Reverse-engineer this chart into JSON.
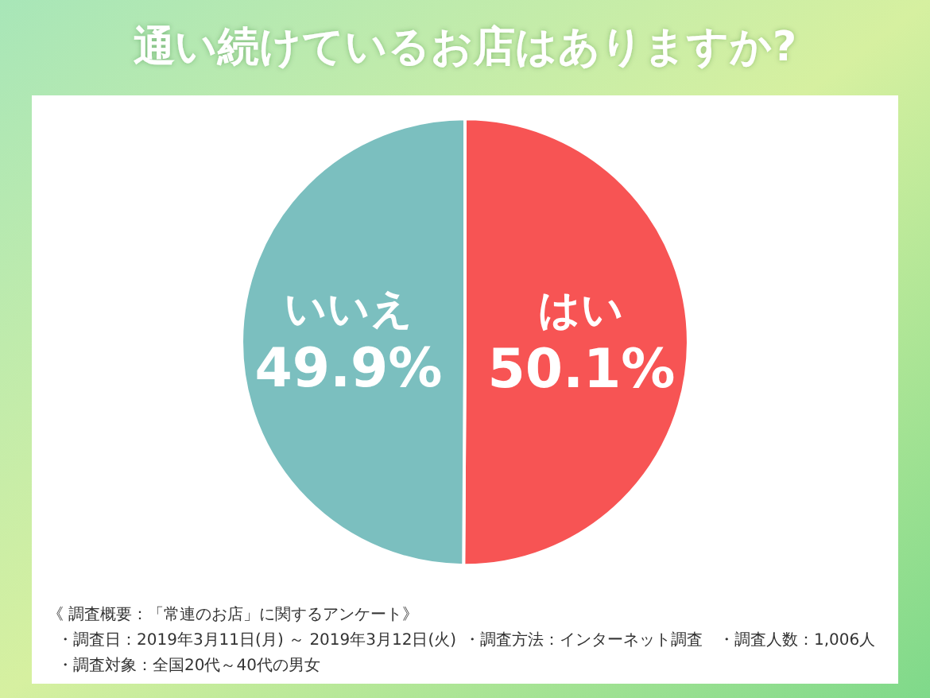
{
  "chart_data": {
    "type": "pie",
    "title": "通い続けているお店はありますか?",
    "categories": [
      "はい",
      "いいえ"
    ],
    "values": [
      50.1,
      49.9
    ],
    "colors": [
      "#f75454",
      "#7bbfbf"
    ],
    "value_labels": [
      "50.1%",
      "49.9%"
    ],
    "annotations": [
      "《 調査概要：「常連のお店」に関するアンケート》",
      "・調査日：2019年3月11日(月) ～ 2019年3月12日(火)",
      "・調査方法：インターネット調査",
      "・調査人数：1,006人",
      "・調査対象：全国20代～40代の男女"
    ]
  }
}
